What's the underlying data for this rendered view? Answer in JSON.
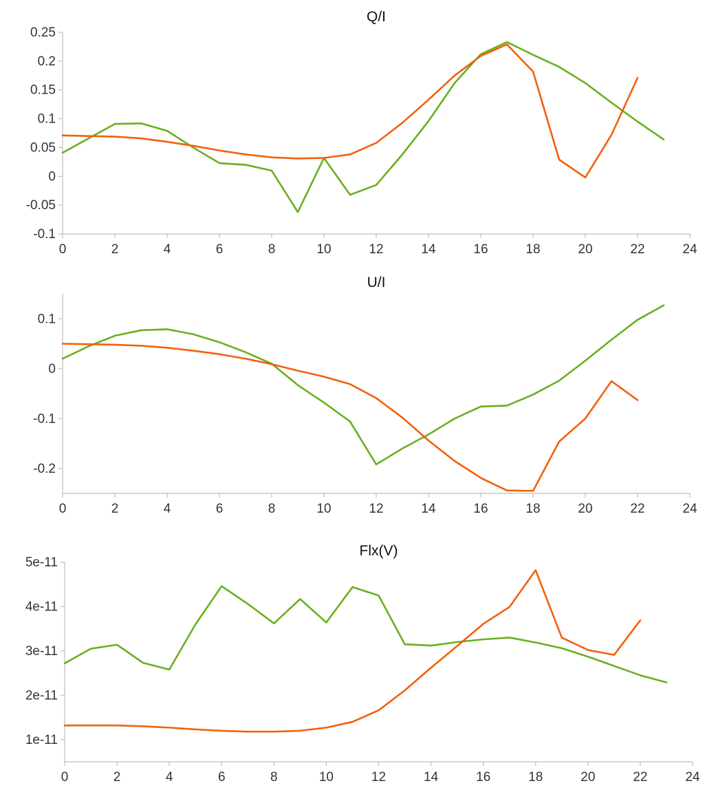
{
  "chart_data": [
    {
      "type": "line",
      "title": "Q/I",
      "xlabel": "",
      "ylabel": "",
      "xlim": [
        0,
        24
      ],
      "ylim": [
        -0.1,
        0.25
      ],
      "x_ticks": [
        "0",
        "2",
        "4",
        "6",
        "8",
        "10",
        "12",
        "14",
        "16",
        "18",
        "20",
        "22",
        "24"
      ],
      "y_ticks": [
        "-0.1",
        "-0.05",
        "0",
        "0.05",
        "0.1",
        "0.15",
        "0.2",
        "0.25"
      ],
      "series": [
        {
          "color": "#6aaf1d",
          "x": [
            0,
            1,
            2,
            3,
            4,
            5,
            6,
            7,
            8,
            9,
            10,
            11,
            12,
            13,
            14,
            15,
            16,
            17,
            18,
            19,
            20,
            21,
            22,
            23
          ],
          "values": [
            0.041,
            0.066,
            0.091,
            0.092,
            0.079,
            0.05,
            0.023,
            0.02,
            0.01,
            -0.062,
            0.032,
            -0.032,
            -0.015,
            0.038,
            0.096,
            0.162,
            0.212,
            0.233,
            0.211,
            0.19,
            0.162,
            0.128,
            0.095,
            0.064
          ]
        },
        {
          "color": "#f2600b",
          "x": [
            0,
            1,
            2,
            3,
            4,
            5,
            6,
            7,
            8,
            9,
            10,
            11,
            12,
            13,
            14,
            15,
            16,
            17,
            18,
            19,
            20,
            21,
            22
          ],
          "values": [
            0.071,
            0.07,
            0.069,
            0.066,
            0.06,
            0.053,
            0.045,
            0.038,
            0.033,
            0.031,
            0.032,
            0.038,
            0.058,
            0.093,
            0.133,
            0.175,
            0.209,
            0.229,
            0.182,
            0.029,
            -0.002,
            0.072,
            0.171
          ]
        }
      ]
    },
    {
      "type": "line",
      "title": "U/I",
      "xlabel": "",
      "ylabel": "",
      "xlim": [
        0,
        24
      ],
      "ylim": [
        -0.25,
        0.15
      ],
      "x_ticks": [
        "0",
        "2",
        "4",
        "6",
        "8",
        "10",
        "12",
        "14",
        "16",
        "18",
        "20",
        "22",
        "24"
      ],
      "y_ticks": [
        "-0.2",
        "-0.1",
        "0",
        "0.1"
      ],
      "series": [
        {
          "color": "#6aaf1d",
          "x": [
            0,
            1,
            2,
            3,
            4,
            5,
            6,
            7,
            8,
            9,
            10,
            11,
            12,
            13,
            14,
            15,
            16,
            17,
            18,
            19,
            20,
            21,
            22,
            23
          ],
          "values": [
            0.02,
            0.045,
            0.066,
            0.077,
            0.079,
            0.069,
            0.053,
            0.033,
            0.01,
            -0.033,
            -0.068,
            -0.106,
            -0.192,
            -0.16,
            -0.132,
            -0.1,
            -0.076,
            -0.074,
            -0.052,
            -0.024,
            0.016,
            0.058,
            0.098,
            0.127
          ]
        },
        {
          "color": "#f2600b",
          "x": [
            0,
            1,
            2,
            3,
            4,
            5,
            6,
            7,
            8,
            9,
            10,
            11,
            12,
            13,
            14,
            15,
            16,
            17,
            18,
            19,
            20,
            21,
            22
          ],
          "values": [
            0.05,
            0.049,
            0.048,
            0.046,
            0.042,
            0.036,
            0.029,
            0.02,
            0.009,
            -0.004,
            -0.016,
            -0.031,
            -0.059,
            -0.098,
            -0.144,
            -0.185,
            -0.219,
            -0.244,
            -0.245,
            -0.146,
            -0.1,
            -0.025,
            -0.063
          ]
        }
      ]
    },
    {
      "type": "line",
      "title": "Flx(V)",
      "xlabel": "",
      "ylabel": "",
      "xlim": [
        0,
        24
      ],
      "ylim": [
        5e-12,
        5e-11
      ],
      "x_ticks": [
        "0",
        "2",
        "4",
        "6",
        "8",
        "10",
        "12",
        "14",
        "16",
        "18",
        "20",
        "22",
        "24"
      ],
      "y_ticks": [
        "1e-11",
        "2e-11",
        "3e-11",
        "4e-11",
        "5e-11"
      ],
      "series": [
        {
          "color": "#6aaf1d",
          "x": [
            0,
            1,
            2,
            3,
            4,
            5,
            6,
            7,
            8,
            9,
            10,
            11,
            12,
            13,
            14,
            15,
            16,
            17,
            18,
            19,
            20,
            21,
            22,
            23
          ],
          "values": [
            2.72e-11,
            3.05e-11,
            3.14e-11,
            2.73e-11,
            2.58e-11,
            3.6e-11,
            4.46e-11,
            4.06e-11,
            3.62e-11,
            4.17e-11,
            3.64e-11,
            4.44e-11,
            4.25e-11,
            3.15e-11,
            3.12e-11,
            3.2e-11,
            3.26e-11,
            3.3e-11,
            3.19e-11,
            3.06e-11,
            2.87e-11,
            2.66e-11,
            2.45e-11,
            2.29e-11
          ]
        },
        {
          "color": "#f2600b",
          "x": [
            0,
            1,
            2,
            3,
            4,
            5,
            6,
            7,
            8,
            9,
            10,
            11,
            12,
            13,
            14,
            15,
            16,
            17,
            18,
            19,
            20,
            21,
            22
          ],
          "values": [
            1.32e-11,
            1.32e-11,
            1.32e-11,
            1.3e-11,
            1.27e-11,
            1.23e-11,
            1.2e-11,
            1.18e-11,
            1.18e-11,
            1.2e-11,
            1.27e-11,
            1.4e-11,
            1.66e-11,
            2.11e-11,
            2.62e-11,
            3.11e-11,
            3.61e-11,
            3.99e-11,
            4.82e-11,
            3.3e-11,
            3.02e-11,
            2.91e-11,
            3.69e-11
          ]
        }
      ]
    }
  ]
}
